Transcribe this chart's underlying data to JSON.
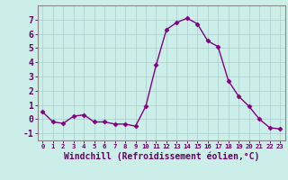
{
  "x": [
    0,
    1,
    2,
    3,
    4,
    5,
    6,
    7,
    8,
    9,
    10,
    11,
    12,
    13,
    14,
    15,
    16,
    17,
    18,
    19,
    20,
    21,
    22,
    23
  ],
  "y": [
    0.5,
    -0.2,
    -0.3,
    0.2,
    0.3,
    -0.2,
    -0.2,
    -0.35,
    -0.35,
    -0.5,
    0.9,
    3.8,
    6.3,
    6.8,
    7.1,
    6.7,
    5.5,
    5.1,
    2.7,
    1.6,
    0.9,
    0.0,
    -0.6,
    -0.7
  ],
  "line_color": "#800080",
  "marker": "D",
  "marker_size": 2.5,
  "line_width": 1.0,
  "bg_color": "#cceee8",
  "grid_color": "#aacccc",
  "xlabel": "Windchill (Refroidissement éolien,°C)",
  "xlabel_fontsize": 7,
  "tick_fontsize": 7,
  "ylim": [
    -1.5,
    8.0
  ],
  "xlim": [
    -0.5,
    23.5
  ],
  "yticks": [
    -1,
    0,
    1,
    2,
    3,
    4,
    5,
    6,
    7
  ],
  "xticks": [
    0,
    1,
    2,
    3,
    4,
    5,
    6,
    7,
    8,
    9,
    10,
    11,
    12,
    13,
    14,
    15,
    16,
    17,
    18,
    19,
    20,
    21,
    22,
    23
  ],
  "text_color": "#660066",
  "spine_color": "#888888"
}
